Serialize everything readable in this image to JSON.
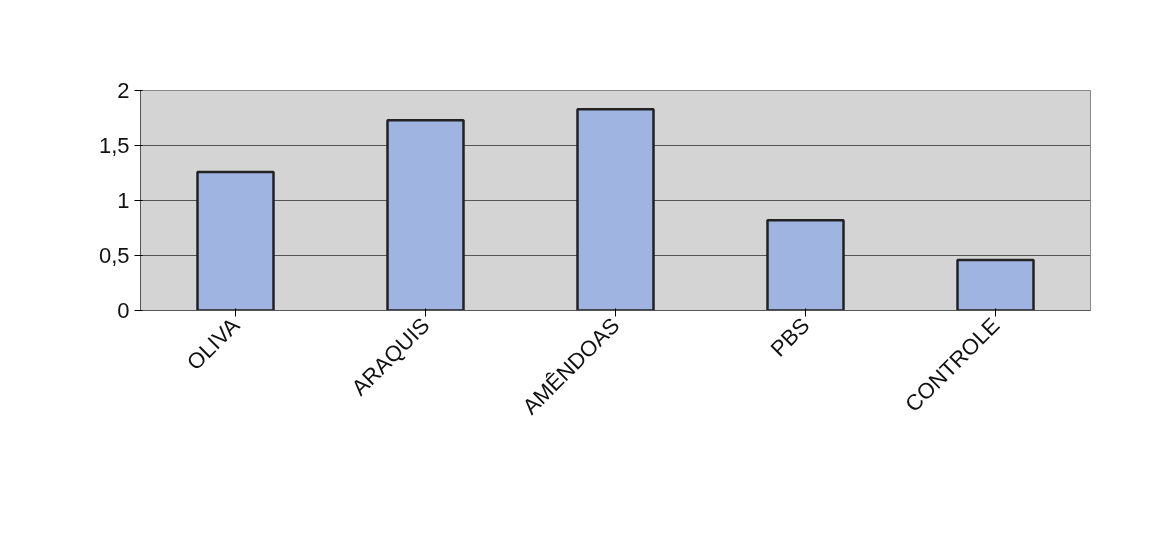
{
  "chart_data": {
    "type": "bar",
    "categories": [
      "OLIVA",
      "ARAQUIS",
      "AMÊNDOAS",
      "PBS",
      "CONTROLE"
    ],
    "values": [
      1.26,
      1.73,
      1.83,
      0.82,
      0.46
    ],
    "color": "#9fb4e0",
    "ylim": [
      0,
      2
    ],
    "yticks": [
      0,
      {
        "value": 0.5,
        "label": "0,5"
      },
      1,
      {
        "value": 1.5,
        "label": "1,5"
      },
      2
    ],
    "grid": "y"
  }
}
